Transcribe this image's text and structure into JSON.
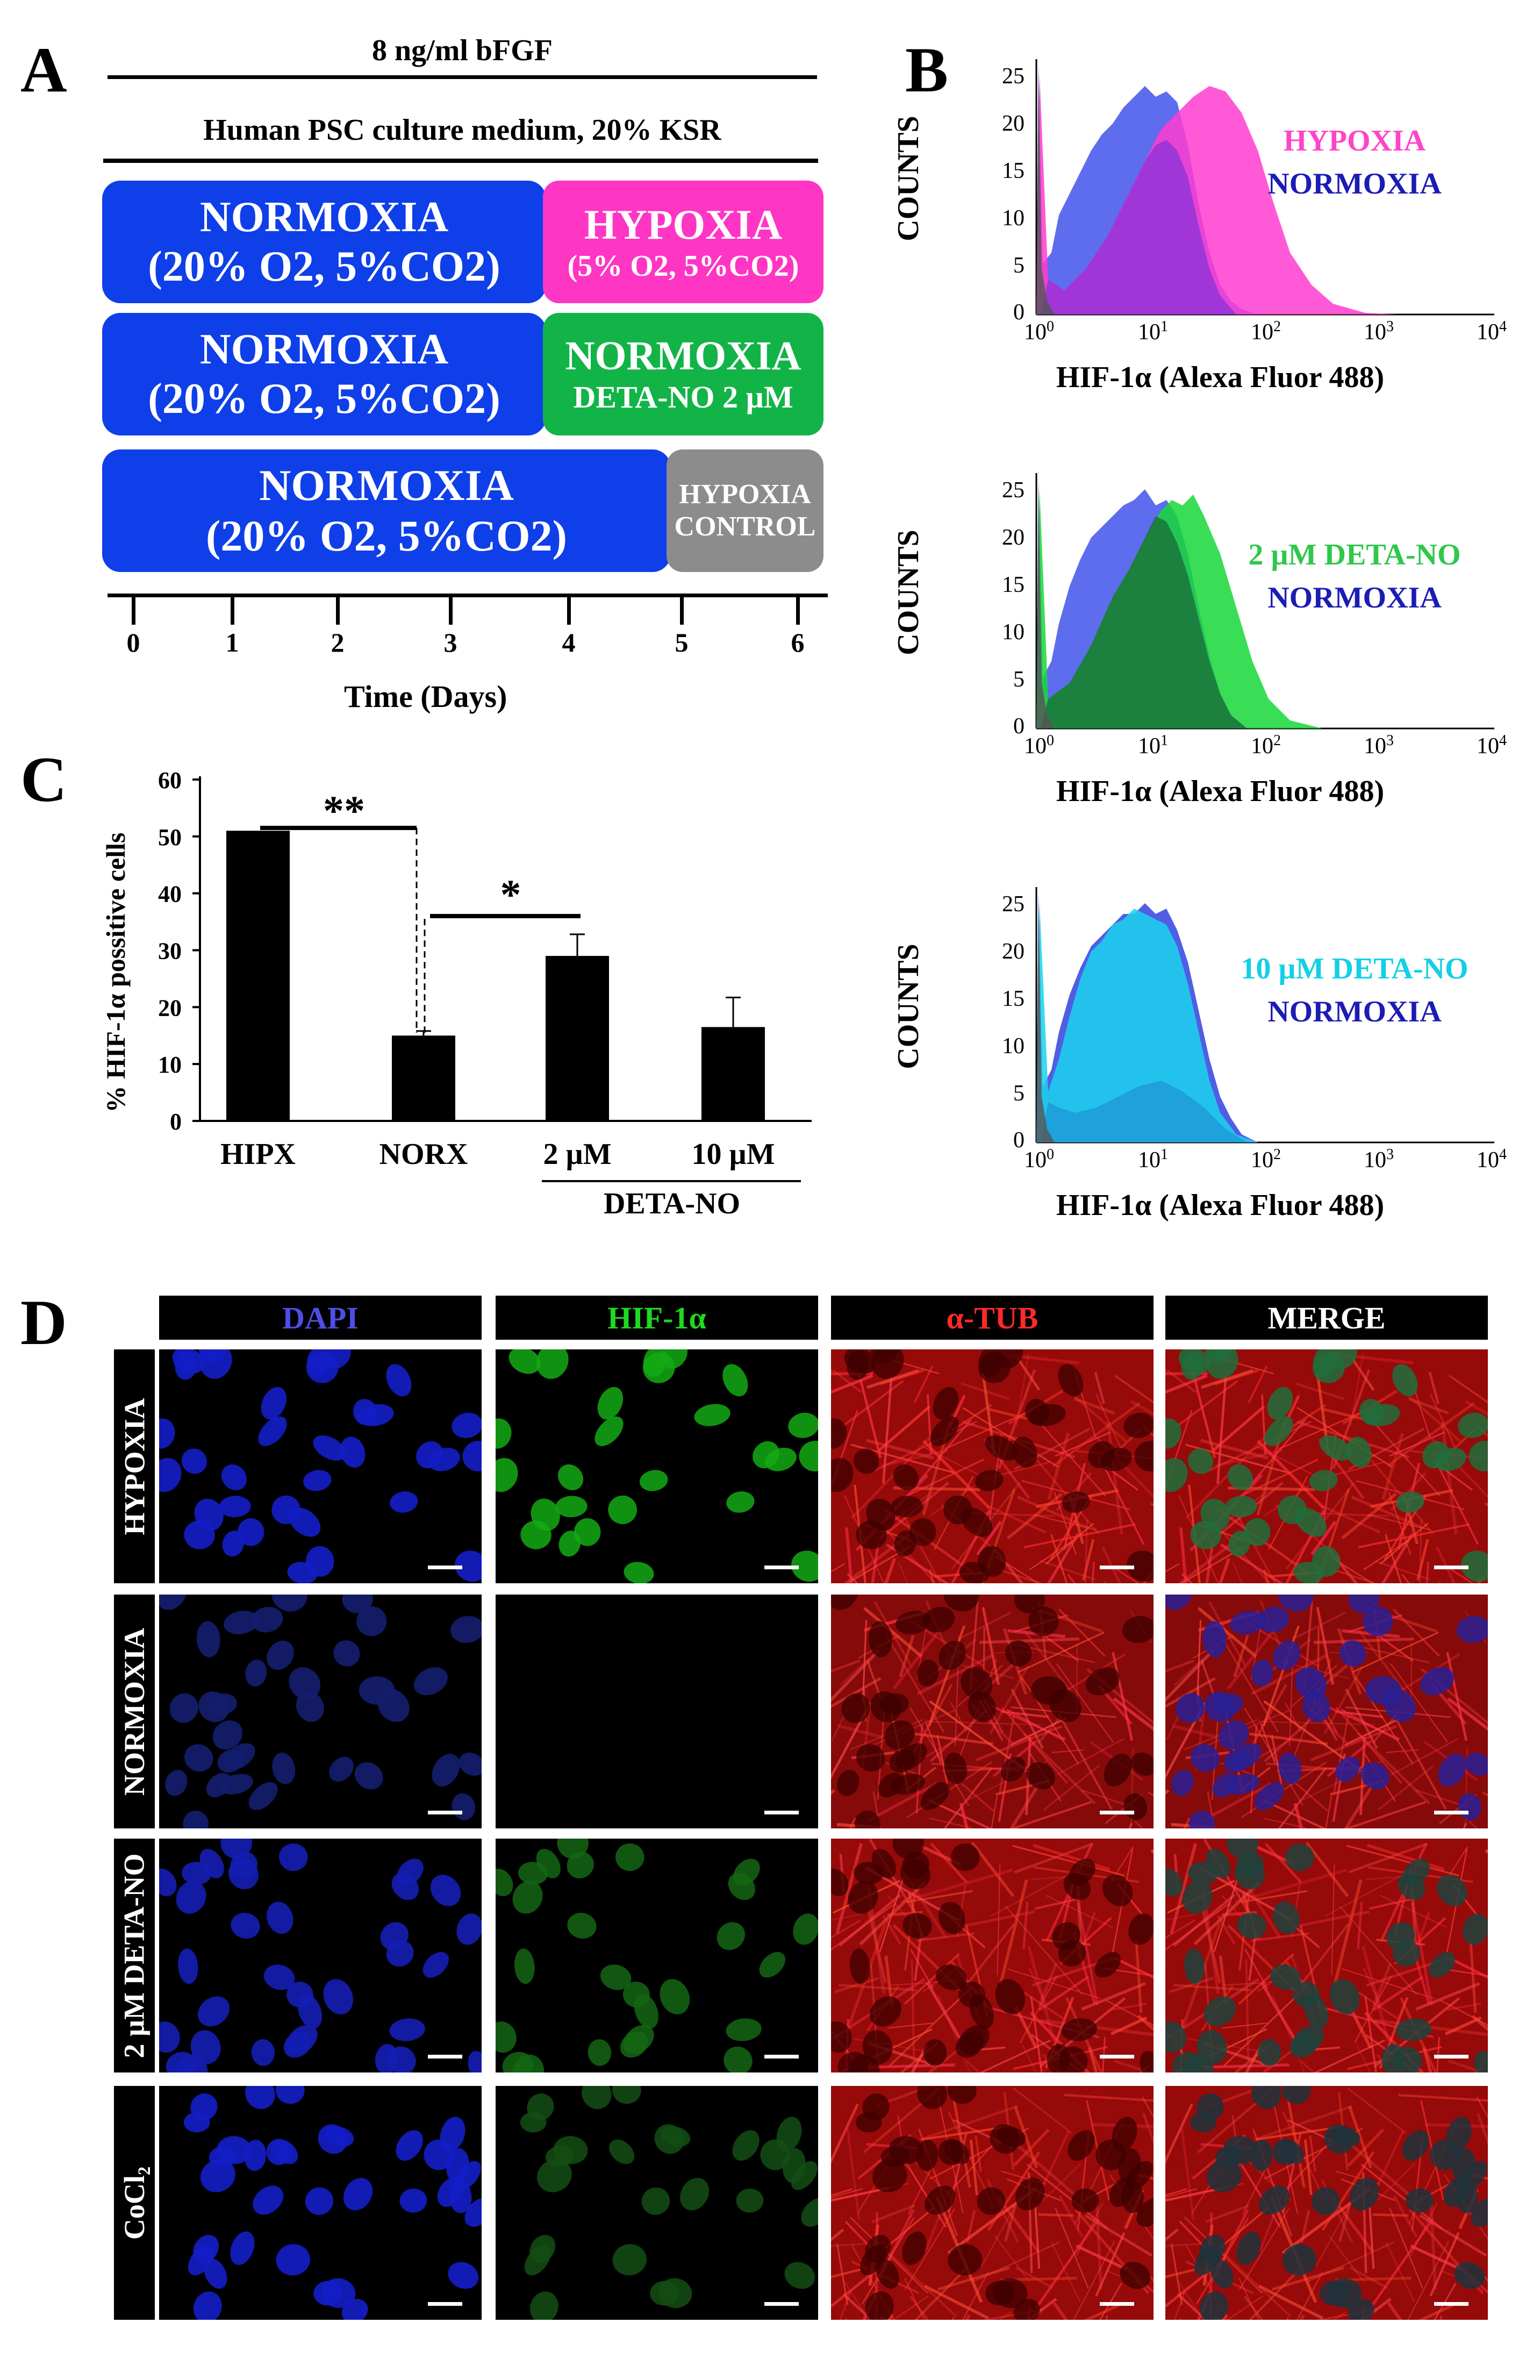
{
  "panels": {
    "a": "A",
    "b": "B",
    "c": "C",
    "d": "D"
  },
  "panelA": {
    "line1": "8 ng/ml bFGF",
    "line2": "Human PSC culture medium, 20% KSR",
    "rows": [
      {
        "main_title": "NORMOXIA",
        "main_sub": "(20% O2, 5%CO2)",
        "end_title": "HYPOXIA",
        "end_sub": "(5% O2, 5%CO2)"
      },
      {
        "main_title": "NORMOXIA",
        "main_sub": "(20% O2, 5%CO2)",
        "end_title": "NORMOXIA",
        "end_sub": "DETA-NO 2 µM"
      },
      {
        "main_title": "NORMOXIA",
        "main_sub": "(20% O2, 5%CO2)",
        "end_title": "HYPOXIA",
        "end_sub": "CONTROL"
      }
    ],
    "ticks": [
      "0",
      "1",
      "2",
      "3",
      "4",
      "5",
      "6"
    ],
    "axis_label": "Time (Days)"
  },
  "panelB": {
    "ylabel": "COUNTS",
    "xlabel": "HIF-1α (Alexa Fluor 488)",
    "y_ticks": [
      "0",
      "5",
      "10",
      "15",
      "20",
      "25"
    ],
    "x_ticks": [
      {
        "base": "10",
        "exp": "0"
      },
      {
        "base": "10",
        "exp": "1"
      },
      {
        "base": "10",
        "exp": "2"
      },
      {
        "base": "10",
        "exp": "3"
      },
      {
        "base": "10",
        "exp": "4"
      }
    ],
    "plots": [
      {
        "legend1": "HYPOXIA",
        "legend1_color": "#ff44c8",
        "legend2": "NORMOXIA",
        "legend2_color": "#1c1cb4"
      },
      {
        "legend1": "2 µM DETA-NO",
        "legend1_color": "#2ec84a",
        "legend2": "NORMOXIA",
        "legend2_color": "#1c1cb4"
      },
      {
        "legend1": "10 µM DETA-NO",
        "legend1_color": "#12d0e6",
        "legend2": "NORMOXIA",
        "legend2_color": "#1c1cb4"
      }
    ]
  },
  "chart_data": {
    "type": "bar",
    "ylabel": "% HIF-1α possitive cells",
    "categories": [
      "HIPX",
      "NORX",
      "2 µM",
      "10 µM"
    ],
    "values": [
      51,
      15,
      29,
      16.5
    ],
    "errors": [
      0,
      0.8,
      3.8,
      5.2
    ],
    "ylim": [
      0,
      60
    ],
    "y_ticks": [
      "0",
      "10",
      "20",
      "30",
      "40",
      "50",
      "60"
    ],
    "group_label": "DETA-NO",
    "significance": [
      {
        "label": "**",
        "pair": [
          "HIPX",
          "NORX"
        ]
      },
      {
        "label": "*",
        "pair": [
          "NORX",
          "2 µM"
        ]
      }
    ]
  },
  "panelD": {
    "columns": [
      {
        "label": "DAPI",
        "color": "#4e4ee6"
      },
      {
        "label": "HIF-1α",
        "color": "#20d820"
      },
      {
        "label": "α-TUB",
        "color": "#ff2a2a"
      },
      {
        "label": "MERGE",
        "color": "#ffffff"
      }
    ],
    "rows": [
      "HYPOXIA",
      "NORMOXIA",
      "2 µM DETA-NO",
      "CoCl₂"
    ]
  }
}
